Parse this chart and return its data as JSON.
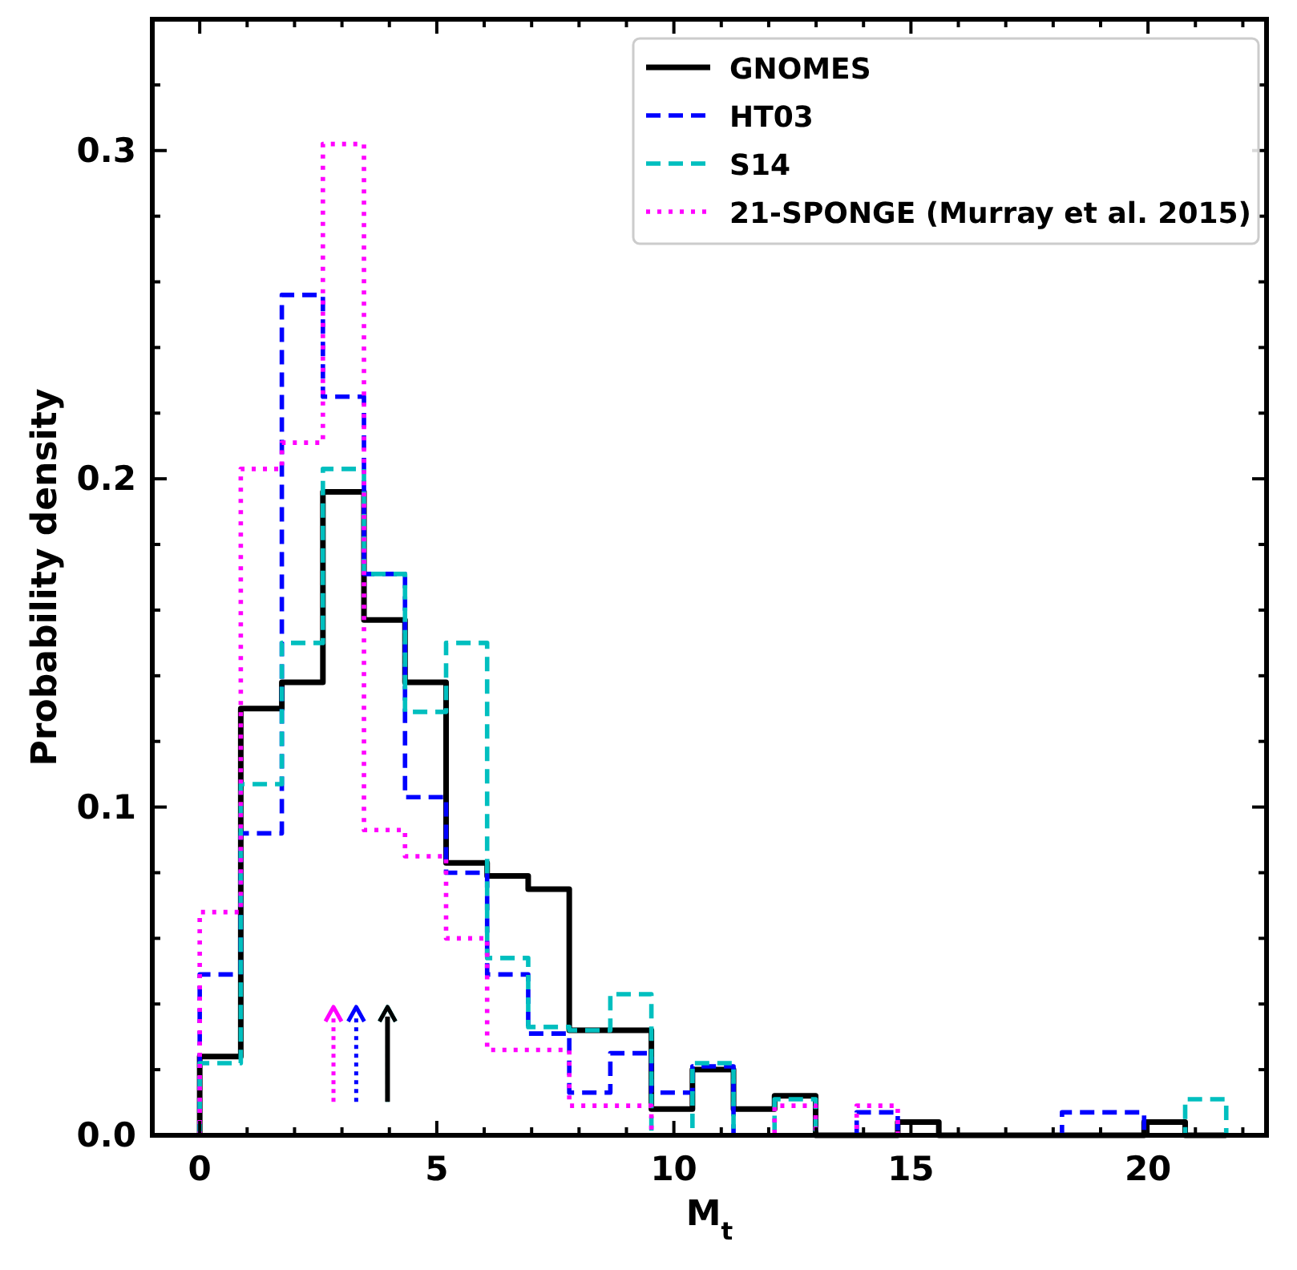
{
  "chart_data": {
    "type": "histogram",
    "xlabel": "M$_{t}$",
    "ylabel": "Probability density",
    "bins": [
      0,
      0.866,
      1.732,
      2.598,
      3.464,
      4.33,
      5.196,
      6.062,
      6.928,
      7.794,
      8.66,
      9.526,
      10.392,
      11.258,
      12.124,
      12.99,
      13.856,
      14.722,
      15.588,
      16.454,
      17.32,
      18.186,
      19.052,
      19.918,
      20.784,
      21.65
    ],
    "series": [
      {
        "name": "GNOMES",
        "color": "#000000",
        "line_style": "solid",
        "values": [
          0.024,
          0.13,
          0.138,
          0.196,
          0.157,
          0.138,
          0.083,
          0.079,
          0.075,
          0.032,
          0.032,
          0.008,
          0.02,
          0.008,
          0.012,
          0,
          0,
          0.004,
          0,
          0,
          0,
          0,
          0,
          0.004,
          0
        ]
      },
      {
        "name": "HT03",
        "color": "#0000ff",
        "line_style": "dashed",
        "values": [
          0.049,
          0.092,
          0.256,
          0.225,
          0.171,
          0.103,
          0.08,
          0.049,
          0.031,
          0.013,
          0.025,
          0.013,
          0.021,
          0,
          0,
          0,
          0.007,
          0,
          0,
          0,
          0,
          0.007,
          0.007,
          0,
          0
        ]
      },
      {
        "name": "S14",
        "color": "#00bfbf",
        "line_style": "dashed",
        "values": [
          0.022,
          0.107,
          0.15,
          0.203,
          0.171,
          0.129,
          0.15,
          0.054,
          0.033,
          0.032,
          0.043,
          0,
          0.022,
          0,
          0.011,
          0,
          0,
          0,
          0,
          0,
          0,
          0,
          0,
          0,
          0.011
        ]
      },
      {
        "name": "21-SPONGE (Murray et al. 2015)",
        "color": "#ff00ff",
        "line_style": "dotted",
        "values": [
          0.068,
          0.203,
          0.211,
          0.302,
          0.093,
          0.085,
          0.06,
          0.026,
          0.026,
          0.009,
          0.009,
          0,
          0,
          0,
          0.009,
          0,
          0.009,
          0,
          0,
          0,
          0,
          0,
          0,
          0,
          0
        ]
      }
    ],
    "xlim": [
      -1,
      22.5
    ],
    "xticks": [
      0,
      5,
      10,
      15,
      20,
      {
        "value": 1,
        "label": null
      },
      {
        "value": 2,
        "label": null
      },
      {
        "value": 3,
        "label": null
      },
      {
        "value": 4,
        "label": null
      },
      {
        "value": 6,
        "label": null
      },
      {
        "value": 7,
        "label": null
      },
      {
        "value": 8,
        "label": null
      },
      {
        "value": 9,
        "label": null
      },
      {
        "value": 11,
        "label": null
      },
      {
        "value": 12,
        "label": null
      },
      {
        "value": 13,
        "label": null
      },
      {
        "value": 14,
        "label": null
      },
      {
        "value": 16,
        "label": null
      },
      {
        "value": 17,
        "label": null
      },
      {
        "value": 18,
        "label": null
      },
      {
        "value": 19,
        "label": null
      },
      {
        "value": 21,
        "label": null
      },
      {
        "value": 22,
        "label": null
      }
    ],
    "ylim": [
      0,
      0.34
    ],
    "yticks": [
      {
        "value": 0,
        "label": "0.0"
      },
      {
        "value": 0.1,
        "label": "0.1"
      },
      {
        "value": 0.2,
        "label": "0.2"
      },
      {
        "value": 0.3,
        "label": "0.3"
      },
      {
        "value": 0.02,
        "label": null
      },
      {
        "value": 0.04,
        "label": null
      },
      {
        "value": 0.06,
        "label": null
      },
      {
        "value": 0.08,
        "label": null
      },
      {
        "value": 0.12,
        "label": null
      },
      {
        "value": 0.14,
        "label": null
      },
      {
        "value": 0.16,
        "label": null
      },
      {
        "value": 0.18,
        "label": null
      },
      {
        "value": 0.22,
        "label": null
      },
      {
        "value": 0.24,
        "label": null
      },
      {
        "value": 0.26,
        "label": null
      },
      {
        "value": 0.28,
        "label": null
      },
      {
        "value": 0.32,
        "label": null
      }
    ],
    "legend": "top right",
    "grid": false
  }
}
